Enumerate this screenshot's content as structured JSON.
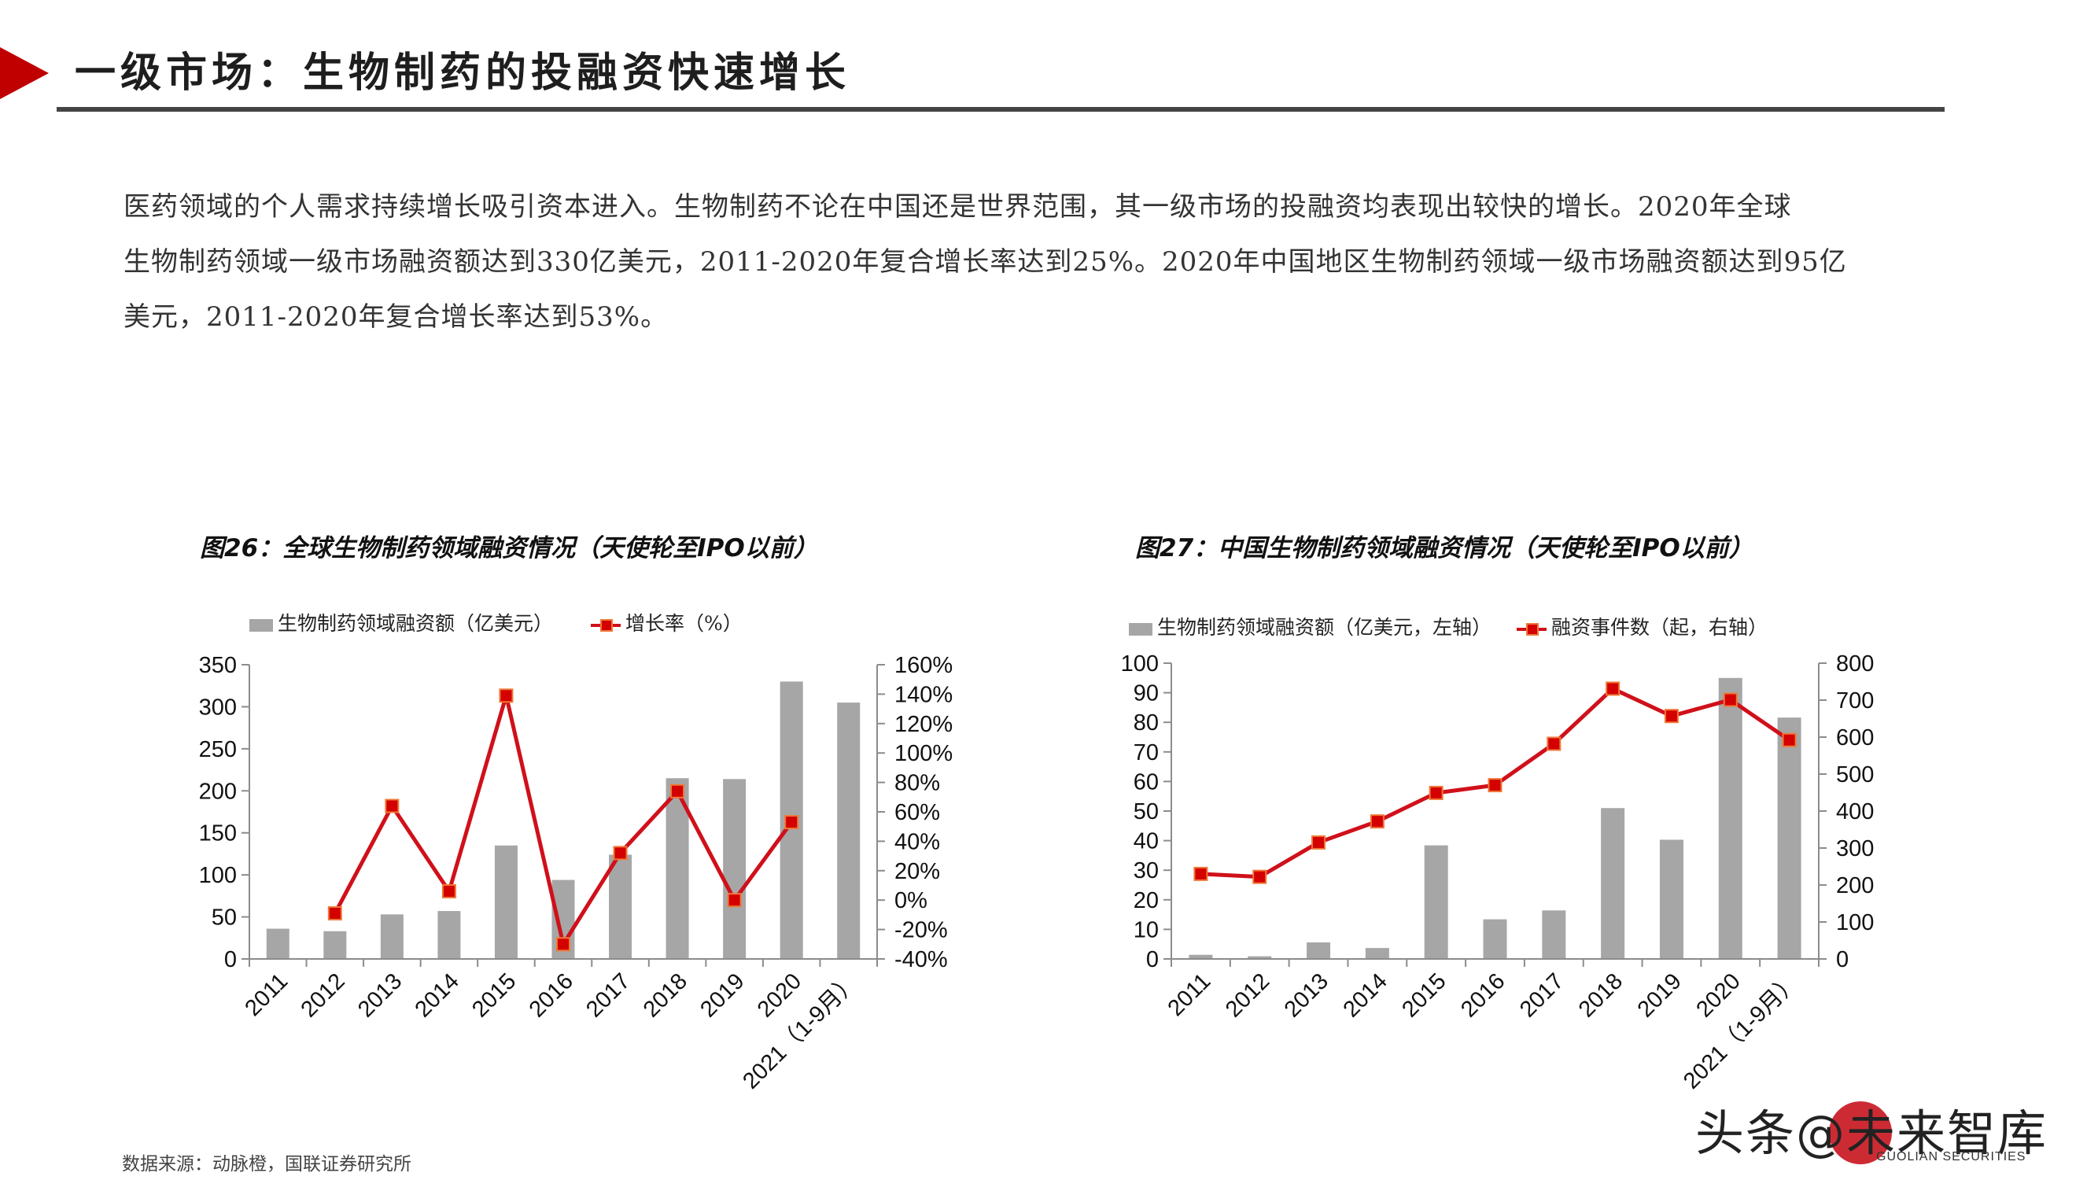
{
  "header": {
    "title": "一级市场：生物制药的投融资快速增长",
    "accent_color": "#c00000"
  },
  "body": {
    "lines": [
      "医药领域的个人需求持续增长吸引资本进入。生物制药不论在中国还是世界范围，其一级市场的投融资均表现出较快的增长。2020年全球",
      "生物制药领域一级市场融资额达到330亿美元，2011-2020年复合增长率达到25%。2020年中国地区生物制药领域一级市场融资额达到95亿",
      "美元，2011-2020年复合增长率达到53%。"
    ]
  },
  "charts": {
    "left": {
      "title": "图26：全球生物制药领域融资情况（天使轮至IPO以前）",
      "legend": {
        "bar": "生物制药领域融资额（亿美元）",
        "line": "增长率（%）"
      },
      "left_ticks": [
        "0",
        "50",
        "100",
        "150",
        "200",
        "250",
        "300",
        "350"
      ],
      "right_ticks": [
        "-40%",
        "-20%",
        "0%",
        "20%",
        "40%",
        "60%",
        "80%",
        "100%",
        "120%",
        "140%",
        "160%"
      ]
    },
    "right": {
      "title": "图27：中国生物制药领域融资情况（天使轮至IPO以前）",
      "legend": {
        "bar": "生物制药领域融资额（亿美元，左轴）",
        "line": "融资事件数（起，右轴）"
      },
      "left_ticks": [
        "0",
        "10",
        "20",
        "30",
        "40",
        "50",
        "60",
        "70",
        "80",
        "90",
        "100"
      ],
      "right_ticks": [
        "0",
        "100",
        "200",
        "300",
        "400",
        "500",
        "600",
        "700",
        "800"
      ]
    }
  },
  "chart_data": [
    {
      "type": "bar",
      "title": "图26：全球生物制药领域融资情况（天使轮至IPO以前）",
      "categories": [
        "2011",
        "2012",
        "2013",
        "2014",
        "2015",
        "2016",
        "2017",
        "2018",
        "2019",
        "2020",
        "2021（1-9月）"
      ],
      "series": [
        {
          "name": "生物制药领域融资额（亿美元）",
          "type": "bar",
          "axis": "left",
          "color": "#a6a6a6",
          "values": [
            36,
            33,
            53,
            57,
            135,
            94,
            124,
            215,
            214,
            330,
            305
          ]
        },
        {
          "name": "增长率（%）",
          "type": "line",
          "axis": "right",
          "color": "#d0101a",
          "values": [
            null,
            -9,
            64,
            6,
            139,
            -30,
            32,
            74,
            0,
            53,
            null
          ]
        }
      ],
      "ylim_left": [
        0,
        350
      ],
      "ylim_right": [
        -40,
        160
      ],
      "ylabel_right_format": "%",
      "grid": false,
      "legend_position": "top"
    },
    {
      "type": "bar",
      "title": "图27：中国生物制药领域融资情况（天使轮至IPO以前）",
      "categories": [
        "2011",
        "2012",
        "2013",
        "2014",
        "2015",
        "2016",
        "2017",
        "2018",
        "2019",
        "2020",
        "2021（1-9月）"
      ],
      "series": [
        {
          "name": "生物制药领域融资额（亿美元，左轴）",
          "type": "bar",
          "axis": "left",
          "color": "#a6a6a6",
          "values": [
            1.4,
            0.9,
            5.6,
            3.7,
            38.4,
            13.4,
            16.4,
            51,
            40.3,
            95,
            81.6
          ]
        },
        {
          "name": "融资事件数（起，右轴）",
          "type": "line",
          "axis": "right",
          "color": "#d0101a",
          "values": [
            230,
            222,
            315,
            372,
            449,
            470,
            582,
            731,
            657,
            701,
            592
          ]
        }
      ],
      "ylim_left": [
        0,
        100
      ],
      "ylim_right": [
        0,
        800
      ],
      "grid": false,
      "legend_position": "top"
    }
  ],
  "footer": {
    "source": "数据来源：动脉橙，国联证券研究所"
  },
  "watermark": {
    "text": "头条@未来智库",
    "sub": "GUOLIAN SECURITIES"
  }
}
